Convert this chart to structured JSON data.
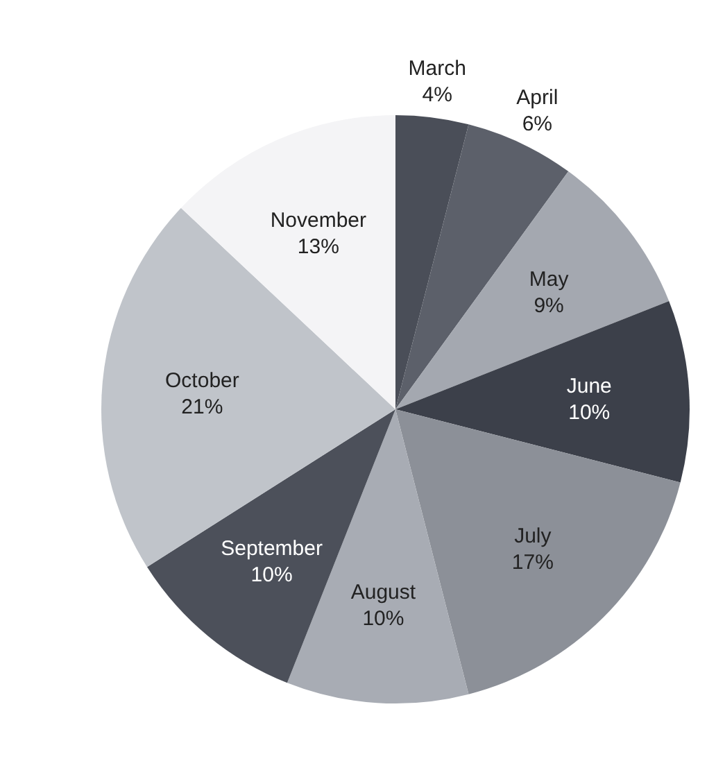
{
  "chart_data": {
    "type": "pie",
    "categories": [
      "March",
      "April",
      "May",
      "June",
      "July",
      "August",
      "September",
      "October",
      "November"
    ],
    "values": [
      4,
      6,
      9,
      10,
      17,
      10,
      10,
      21,
      13
    ],
    "value_labels": [
      "4%",
      "6%",
      "9%",
      "10%",
      "17%",
      "10%",
      "10%",
      "21%",
      "13%"
    ],
    "colors": [
      "#4a4e58",
      "#5c606a",
      "#a4a8b0",
      "#3c404a",
      "#8c9098",
      "#a8acb4",
      "#4c505a",
      "#c0c4ca",
      "#f4f4f6"
    ]
  }
}
